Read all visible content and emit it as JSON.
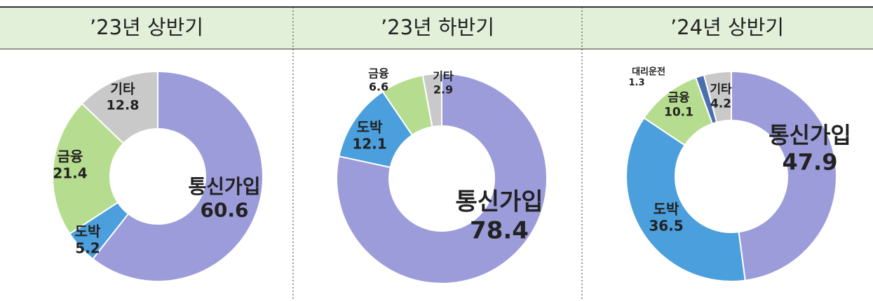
{
  "chart_data": [
    {
      "type": "pie",
      "title": "’23년 상반기",
      "categories": [
        "통신가입",
        "도박",
        "금융",
        "기타"
      ],
      "values": [
        60.6,
        5.2,
        21.4,
        12.8
      ],
      "colors": [
        "#9c9cdb",
        "#4a9fdc",
        "#b6dd8f",
        "#c9c9c9"
      ]
    },
    {
      "type": "pie",
      "title": "’23년 하반기",
      "categories": [
        "통신가입",
        "도박",
        "금융",
        "기타"
      ],
      "values": [
        78.4,
        12.1,
        6.6,
        2.9
      ],
      "colors": [
        "#9c9cdb",
        "#4a9fdc",
        "#b6dd8f",
        "#c9c9c9"
      ]
    },
    {
      "type": "pie",
      "title": "’24년 상반기",
      "categories": [
        "통신가입",
        "도박",
        "금융",
        "대리운전",
        "기타"
      ],
      "values": [
        47.9,
        36.5,
        10.1,
        1.3,
        4.2
      ],
      "colors": [
        "#9c9cdb",
        "#4a9fdc",
        "#b6dd8f",
        "#4a6fb0",
        "#c9c9c9"
      ]
    }
  ]
}
